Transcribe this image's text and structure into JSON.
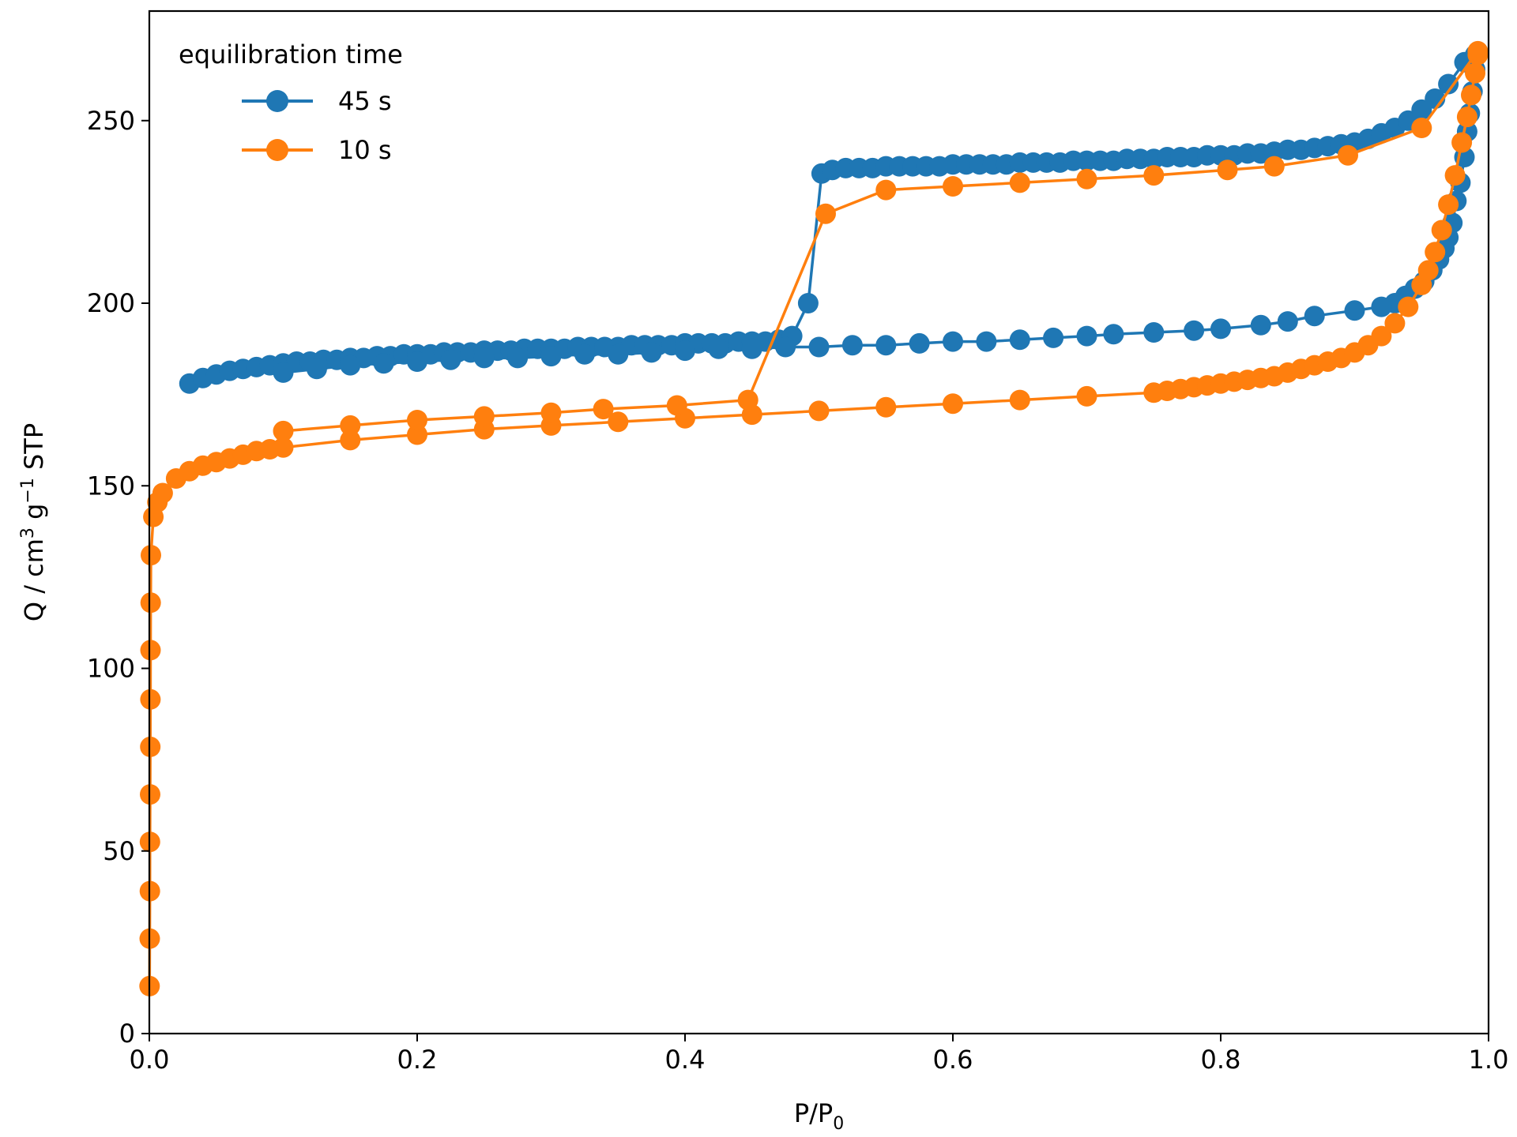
{
  "colors": {
    "series_45s": "#1f77b4",
    "series_10s": "#ff7f0e",
    "axis": "#000000",
    "background": "#ffffff"
  },
  "chart_data": {
    "type": "line",
    "title": "",
    "xlabel_main": "P/P",
    "xlabel_sub": "0",
    "ylabel_main": "Q / cm",
    "ylabel_sup1": "3",
    "ylabel_mid": " g",
    "ylabel_sup2": "−1",
    "ylabel_end": " STP",
    "xlim": [
      0.0,
      1.0
    ],
    "ylim": [
      0,
      280
    ],
    "xticks": [
      0.0,
      0.2,
      0.4,
      0.6,
      0.8,
      1.0
    ],
    "xtick_labels": [
      "0.0",
      "0.2",
      "0.4",
      "0.6",
      "0.8",
      "1.0"
    ],
    "yticks": [
      0,
      50,
      100,
      150,
      200,
      250
    ],
    "ytick_labels": [
      "0",
      "50",
      "100",
      "150",
      "200",
      "250"
    ],
    "grid": false,
    "legend": {
      "title": "equilibration time",
      "placement": "top-left",
      "entries": [
        "45 s",
        "10 s"
      ]
    },
    "series": [
      {
        "name": "45 s",
        "color": "#1f77b4",
        "points": [
          [
            0.03,
            178
          ],
          [
            0.04,
            179.5
          ],
          [
            0.05,
            180.5
          ],
          [
            0.06,
            181.5
          ],
          [
            0.07,
            182
          ],
          [
            0.08,
            182.5
          ],
          [
            0.09,
            183
          ],
          [
            0.1,
            183.5
          ],
          [
            0.11,
            184
          ],
          [
            0.12,
            184
          ],
          [
            0.13,
            184.5
          ],
          [
            0.14,
            184.5
          ],
          [
            0.15,
            185
          ],
          [
            0.16,
            185
          ],
          [
            0.17,
            185.5
          ],
          [
            0.18,
            185.5
          ],
          [
            0.19,
            186
          ],
          [
            0.2,
            186
          ],
          [
            0.21,
            186
          ],
          [
            0.22,
            186.5
          ],
          [
            0.23,
            186.5
          ],
          [
            0.24,
            186.5
          ],
          [
            0.25,
            187
          ],
          [
            0.26,
            187
          ],
          [
            0.27,
            187
          ],
          [
            0.28,
            187.5
          ],
          [
            0.29,
            187.5
          ],
          [
            0.3,
            187.5
          ],
          [
            0.31,
            187.5
          ],
          [
            0.32,
            188
          ],
          [
            0.33,
            188
          ],
          [
            0.34,
            188
          ],
          [
            0.35,
            188
          ],
          [
            0.36,
            188.5
          ],
          [
            0.37,
            188.5
          ],
          [
            0.38,
            188.5
          ],
          [
            0.39,
            188.5
          ],
          [
            0.4,
            189
          ],
          [
            0.41,
            189
          ],
          [
            0.42,
            189
          ],
          [
            0.43,
            189
          ],
          [
            0.44,
            189.5
          ],
          [
            0.45,
            189.5
          ],
          [
            0.46,
            189.5
          ],
          [
            0.47,
            190
          ],
          [
            0.48,
            191
          ],
          [
            0.492,
            200
          ],
          [
            0.502,
            235.5
          ],
          [
            0.51,
            236.5
          ],
          [
            0.52,
            237
          ],
          [
            0.53,
            237
          ],
          [
            0.54,
            237
          ],
          [
            0.55,
            237.5
          ],
          [
            0.56,
            237.5
          ],
          [
            0.57,
            237.5
          ],
          [
            0.58,
            237.5
          ],
          [
            0.59,
            237.5
          ],
          [
            0.6,
            238
          ],
          [
            0.61,
            238
          ],
          [
            0.62,
            238
          ],
          [
            0.63,
            238
          ],
          [
            0.64,
            238
          ],
          [
            0.65,
            238.5
          ],
          [
            0.66,
            238.5
          ],
          [
            0.67,
            238.5
          ],
          [
            0.68,
            238.5
          ],
          [
            0.69,
            239
          ],
          [
            0.7,
            239
          ],
          [
            0.71,
            239
          ],
          [
            0.72,
            239
          ],
          [
            0.73,
            239.5
          ],
          [
            0.74,
            239.5
          ],
          [
            0.75,
            239.5
          ],
          [
            0.76,
            240
          ],
          [
            0.77,
            240
          ],
          [
            0.78,
            240
          ],
          [
            0.79,
            240.5
          ],
          [
            0.8,
            240.5
          ],
          [
            0.81,
            240.5
          ],
          [
            0.82,
            241
          ],
          [
            0.83,
            241
          ],
          [
            0.84,
            241.5
          ],
          [
            0.85,
            242
          ],
          [
            0.86,
            242
          ],
          [
            0.87,
            242.5
          ],
          [
            0.88,
            243
          ],
          [
            0.89,
            243.5
          ],
          [
            0.9,
            244
          ],
          [
            0.91,
            245
          ],
          [
            0.92,
            246.5
          ],
          [
            0.93,
            248
          ],
          [
            0.94,
            250
          ],
          [
            0.95,
            253
          ],
          [
            0.96,
            256
          ],
          [
            0.97,
            260
          ],
          [
            0.982,
            266
          ],
          [
            0.99,
            268
          ],
          [
            0.99,
            264
          ],
          [
            0.988,
            258
          ],
          [
            0.986,
            252
          ],
          [
            0.984,
            247
          ],
          [
            0.982,
            240
          ],
          [
            0.979,
            233
          ],
          [
            0.976,
            228
          ],
          [
            0.973,
            222
          ],
          [
            0.97,
            218
          ],
          [
            0.967,
            215
          ],
          [
            0.963,
            212
          ],
          [
            0.958,
            209
          ],
          [
            0.952,
            206
          ],
          [
            0.945,
            204
          ],
          [
            0.938,
            202
          ],
          [
            0.93,
            200
          ],
          [
            0.92,
            199
          ],
          [
            0.9,
            198
          ],
          [
            0.87,
            196.5
          ],
          [
            0.85,
            195
          ],
          [
            0.83,
            194
          ],
          [
            0.8,
            193
          ],
          [
            0.78,
            192.5
          ],
          [
            0.75,
            192
          ],
          [
            0.72,
            191.5
          ],
          [
            0.7,
            191
          ],
          [
            0.675,
            190.5
          ],
          [
            0.65,
            190
          ],
          [
            0.625,
            189.5
          ],
          [
            0.6,
            189.5
          ],
          [
            0.575,
            189
          ],
          [
            0.55,
            188.5
          ],
          [
            0.525,
            188.5
          ],
          [
            0.5,
            188
          ],
          [
            0.475,
            188
          ],
          [
            0.45,
            187.5
          ],
          [
            0.425,
            187.5
          ],
          [
            0.4,
            187
          ],
          [
            0.375,
            186.5
          ],
          [
            0.35,
            186
          ],
          [
            0.325,
            186
          ],
          [
            0.3,
            185.5
          ],
          [
            0.275,
            185
          ],
          [
            0.25,
            185
          ],
          [
            0.225,
            184.5
          ],
          [
            0.2,
            184
          ],
          [
            0.175,
            183.5
          ],
          [
            0.15,
            183
          ],
          [
            0.125,
            182
          ],
          [
            0.1,
            181
          ]
        ]
      },
      {
        "name": "10 s",
        "color": "#ff7f0e",
        "points": [
          [
            0.0002,
            13
          ],
          [
            0.0003,
            26
          ],
          [
            0.0004,
            39
          ],
          [
            0.0005,
            52.5
          ],
          [
            0.0006,
            65.5
          ],
          [
            0.0007,
            78.5
          ],
          [
            0.0008,
            91.5
          ],
          [
            0.0009,
            105
          ],
          [
            0.001,
            118
          ],
          [
            0.0012,
            131
          ],
          [
            0.003,
            141.5
          ],
          [
            0.006,
            145.5
          ],
          [
            0.01,
            148
          ],
          [
            0.02,
            152
          ],
          [
            0.03,
            154
          ],
          [
            0.04,
            155.5
          ],
          [
            0.05,
            156.5
          ],
          [
            0.06,
            157.5
          ],
          [
            0.07,
            158.5
          ],
          [
            0.08,
            159.5
          ],
          [
            0.09,
            160
          ],
          [
            0.1,
            160.5
          ],
          [
            0.15,
            162.5
          ],
          [
            0.2,
            164
          ],
          [
            0.25,
            165.5
          ],
          [
            0.3,
            166.5
          ],
          [
            0.35,
            167.5
          ],
          [
            0.4,
            168.5
          ],
          [
            0.45,
            169.5
          ],
          [
            0.5,
            170.5
          ],
          [
            0.55,
            171.5
          ],
          [
            0.6,
            172.5
          ],
          [
            0.65,
            173.5
          ],
          [
            0.7,
            174.5
          ],
          [
            0.75,
            175.5
          ],
          [
            0.76,
            176
          ],
          [
            0.77,
            176.5
          ],
          [
            0.78,
            177
          ],
          [
            0.79,
            177.5
          ],
          [
            0.8,
            178
          ],
          [
            0.81,
            178.5
          ],
          [
            0.82,
            179
          ],
          [
            0.83,
            179.5
          ],
          [
            0.84,
            180
          ],
          [
            0.85,
            181
          ],
          [
            0.86,
            182
          ],
          [
            0.87,
            183
          ],
          [
            0.88,
            184
          ],
          [
            0.89,
            185
          ],
          [
            0.9,
            186.5
          ],
          [
            0.91,
            188.5
          ],
          [
            0.92,
            191
          ],
          [
            0.93,
            194.5
          ],
          [
            0.94,
            199
          ],
          [
            0.95,
            205
          ],
          [
            0.955,
            209
          ],
          [
            0.96,
            214
          ],
          [
            0.965,
            220
          ],
          [
            0.97,
            227
          ],
          [
            0.975,
            235
          ],
          [
            0.98,
            244
          ],
          [
            0.984,
            251
          ],
          [
            0.987,
            257
          ],
          [
            0.99,
            263
          ],
          [
            0.992,
            268
          ],
          [
            0.992,
            269
          ],
          [
            0.95,
            248
          ],
          [
            0.895,
            240.5
          ],
          [
            0.84,
            237.5
          ],
          [
            0.805,
            236.5
          ],
          [
            0.75,
            235
          ],
          [
            0.7,
            234
          ],
          [
            0.65,
            233
          ],
          [
            0.6,
            232
          ],
          [
            0.55,
            231
          ],
          [
            0.505,
            224.5
          ],
          [
            0.447,
            173.5
          ],
          [
            0.394,
            172
          ],
          [
            0.339,
            171
          ],
          [
            0.3,
            170
          ],
          [
            0.25,
            169
          ],
          [
            0.2,
            168
          ],
          [
            0.15,
            166.5
          ],
          [
            0.1,
            165
          ]
        ]
      }
    ]
  }
}
